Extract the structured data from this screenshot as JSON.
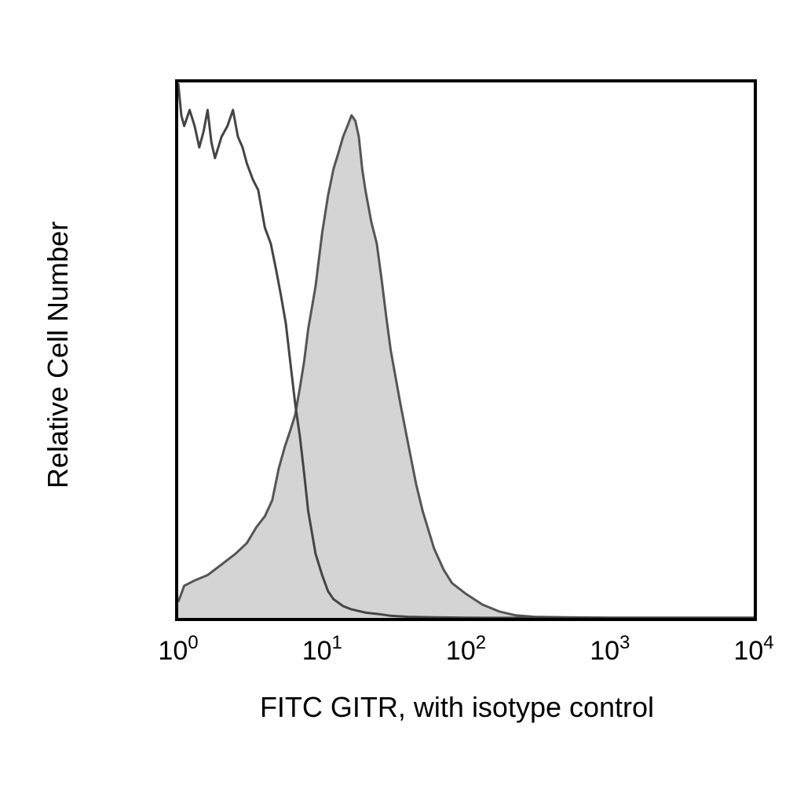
{
  "chart_data": {
    "type": "area",
    "xlabel": "FITC GITR, with isotype control",
    "ylabel": "Relative Cell Number",
    "x_scale": "log",
    "xlim": [
      1,
      10000
    ],
    "ylim": [
      0,
      100
    ],
    "x_ticks": [
      {
        "value": 1,
        "base": "10",
        "exp": "0"
      },
      {
        "value": 10,
        "base": "10",
        "exp": "1"
      },
      {
        "value": 100,
        "base": "10",
        "exp": "2"
      },
      {
        "value": 1000,
        "base": "10",
        "exp": "3"
      },
      {
        "value": 10000,
        "base": "10",
        "exp": "4"
      }
    ],
    "grid": false,
    "series": [
      {
        "style": "filled",
        "fill_color": "#d4d4d4",
        "stroke_color": "#555555",
        "x": [
          1.0,
          1.1,
          1.3,
          1.6,
          2.0,
          2.5,
          3.0,
          3.5,
          4.0,
          4.5,
          5.0,
          5.5,
          6.0,
          6.5,
          7.0,
          7.5,
          8.0,
          9.0,
          10.0,
          11.0,
          12.0,
          13.0,
          14.0,
          15.0,
          16.0,
          17.0,
          18.0,
          19.0,
          20.0,
          22.0,
          24.0,
          26.0,
          28.0,
          30.0,
          35.0,
          40.0,
          45.0,
          50.0,
          60.0,
          70.0,
          80.0,
          100.0,
          130.0,
          170.0,
          220.0,
          300.0,
          500.0,
          1000.0,
          3000.0,
          10000.0
        ],
        "y": [
          3,
          6,
          7,
          8,
          10,
          12,
          14,
          17,
          19,
          22,
          28,
          32,
          35,
          38,
          43,
          48,
          54,
          62,
          72,
          79,
          84,
          87,
          90,
          92,
          94,
          93,
          90,
          84,
          80,
          74,
          70,
          63,
          56,
          50,
          40,
          32,
          25,
          20,
          13,
          9,
          6.5,
          4.5,
          2.5,
          1.2,
          0.5,
          0.2,
          0.1,
          0.05,
          0.05,
          0.05
        ]
      },
      {
        "style": "line",
        "stroke_color": "#444444",
        "x": [
          1.0,
          1.05,
          1.1,
          1.2,
          1.3,
          1.4,
          1.5,
          1.6,
          1.7,
          1.8,
          2.0,
          2.2,
          2.4,
          2.6,
          2.8,
          3.0,
          3.3,
          3.6,
          4.0,
          4.4,
          4.8,
          5.2,
          5.6,
          6.0,
          6.5,
          7.0,
          7.5,
          8.0,
          9.0,
          10.0,
          11.0,
          12.0,
          14.0,
          16.0,
          20.0,
          25.0,
          30.0,
          40.0,
          60.0,
          100.0,
          200.0,
          10000.0
        ],
        "y": [
          100,
          94,
          92,
          95,
          92,
          88,
          91,
          95,
          89,
          86,
          90,
          92,
          95,
          90,
          88,
          85,
          82,
          80,
          73,
          70,
          65,
          60,
          55,
          48,
          40,
          34,
          27,
          20,
          12,
          8,
          5,
          3.5,
          2.2,
          1.6,
          1.0,
          0.7,
          0.4,
          0.2,
          0.1,
          0.05,
          0.02,
          0.02
        ]
      }
    ]
  }
}
